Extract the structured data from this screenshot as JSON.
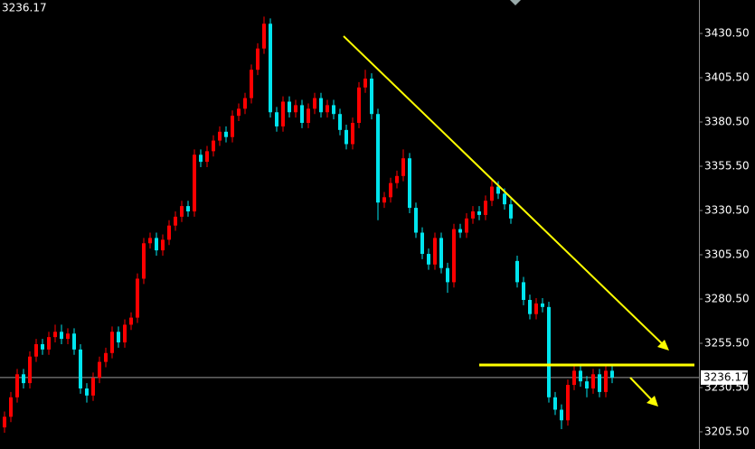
{
  "chart_data": {
    "type": "candlestick",
    "last_price": 3236.17,
    "ylim": [
      3195.8,
      3449.4
    ],
    "yticks": [
      {
        "value": 3430.5,
        "label": "3430.50"
      },
      {
        "value": 3405.5,
        "label": "3405.50"
      },
      {
        "value": 3380.5,
        "label": "3380.50"
      },
      {
        "value": 3355.5,
        "label": "3355.50"
      },
      {
        "value": 3330.5,
        "label": "3330.50"
      },
      {
        "value": 3305.5,
        "label": "3305.50"
      },
      {
        "value": 3280.5,
        "label": "3280.50"
      },
      {
        "value": 3255.5,
        "label": "3255.50"
      },
      {
        "value": 3230.5,
        "label": "3230.50"
      },
      {
        "value": 3205.5,
        "label": "3205.50"
      }
    ],
    "up_color": "#ff0000",
    "down_color": "#00e5ee",
    "open": [
      3208,
      3214,
      3225,
      3238,
      3233,
      3248,
      3255,
      3252,
      3259,
      3262,
      3258,
      3261,
      3252,
      3230,
      3226,
      3236,
      3245,
      3250,
      3262,
      3256,
      3266,
      3270,
      3292,
      3312,
      3315,
      3308,
      3314,
      3322,
      3327,
      3333,
      3330,
      3362,
      3358,
      3364,
      3370,
      3375,
      3372,
      3384,
      3388,
      3394,
      3410,
      3422,
      3436,
      3386,
      3378,
      3392,
      3386,
      3390,
      3380,
      3388,
      3394,
      3386,
      3390,
      3385,
      3376,
      3368,
      3380,
      3400,
      3405,
      3385,
      3335,
      3338,
      3346,
      3350,
      3360,
      3332,
      3318,
      3306,
      3300,
      3315,
      3298,
      3290,
      3320,
      3318,
      3326,
      3330,
      3328,
      3336,
      3344,
      3340,
      3334,
      3302,
      3290,
      3280,
      3272,
      3278,
      3276,
      3225,
      3218,
      3212,
      3232,
      3240,
      3234,
      3230,
      3238,
      3228,
      3240
    ],
    "high": [
      3217,
      3228,
      3241,
      3241,
      3251,
      3258,
      3258,
      3262,
      3266,
      3266,
      3264,
      3264,
      3255,
      3233,
      3239,
      3248,
      3253,
      3265,
      3265,
      3269,
      3273,
      3295,
      3315,
      3318,
      3318,
      3317,
      3325,
      3330,
      3336,
      3336,
      3365,
      3365,
      3367,
      3373,
      3378,
      3378,
      3387,
      3391,
      3397,
      3413,
      3425,
      3440,
      3439,
      3389,
      3395,
      3395,
      3393,
      3393,
      3391,
      3397,
      3397,
      3393,
      3393,
      3388,
      3379,
      3383,
      3403,
      3410,
      3408,
      3388,
      3341,
      3349,
      3353,
      3365,
      3363,
      3335,
      3321,
      3309,
      3318,
      3318,
      3301,
      3323,
      3323,
      3329,
      3333,
      3333,
      3339,
      3348,
      3347,
      3343,
      3337,
      3305,
      3293,
      3283,
      3281,
      3281,
      3279,
      3228,
      3221,
      3235,
      3244,
      3243,
      3237,
      3241,
      3241,
      3243,
      3243
    ],
    "low": [
      3205,
      3211,
      3222,
      3230,
      3230,
      3245,
      3249,
      3249,
      3256,
      3255,
      3255,
      3249,
      3227,
      3222,
      3223,
      3233,
      3242,
      3247,
      3253,
      3253,
      3263,
      3267,
      3289,
      3309,
      3305,
      3305,
      3311,
      3319,
      3324,
      3327,
      3327,
      3355,
      3355,
      3361,
      3367,
      3369,
      3369,
      3381,
      3385,
      3391,
      3407,
      3419,
      3383,
      3375,
      3375,
      3383,
      3383,
      3377,
      3377,
      3385,
      3383,
      3383,
      3382,
      3373,
      3365,
      3365,
      3377,
      3397,
      3382,
      3325,
      3332,
      3335,
      3343,
      3347,
      3329,
      3315,
      3303,
      3297,
      3297,
      3295,
      3284,
      3287,
      3315,
      3315,
      3323,
      3325,
      3325,
      3333,
      3337,
      3331,
      3323,
      3287,
      3277,
      3269,
      3269,
      3273,
      3222,
      3215,
      3207,
      3209,
      3229,
      3231,
      3225,
      3227,
      3225,
      3225,
      3233
    ],
    "close": [
      3214,
      3225,
      3238,
      3233,
      3248,
      3255,
      3252,
      3259,
      3262,
      3258,
      3261,
      3252,
      3230,
      3226,
      3236,
      3245,
      3250,
      3262,
      3256,
      3266,
      3270,
      3292,
      3312,
      3315,
      3308,
      3314,
      3322,
      3327,
      3333,
      3330,
      3362,
      3358,
      3364,
      3370,
      3375,
      3372,
      3384,
      3388,
      3394,
      3410,
      3422,
      3436,
      3386,
      3378,
      3392,
      3386,
      3390,
      3380,
      3388,
      3394,
      3386,
      3390,
      3385,
      3376,
      3368,
      3380,
      3400,
      3405,
      3385,
      3335,
      3338,
      3346,
      3350,
      3360,
      3332,
      3318,
      3306,
      3300,
      3315,
      3298,
      3290,
      3320,
      3318,
      3326,
      3330,
      3328,
      3336,
      3344,
      3340,
      3334,
      3326,
      3290,
      3280,
      3272,
      3278,
      3276,
      3225,
      3218,
      3212,
      3232,
      3240,
      3234,
      3230,
      3238,
      3228,
      3240,
      3236.17
    ]
  }
}
